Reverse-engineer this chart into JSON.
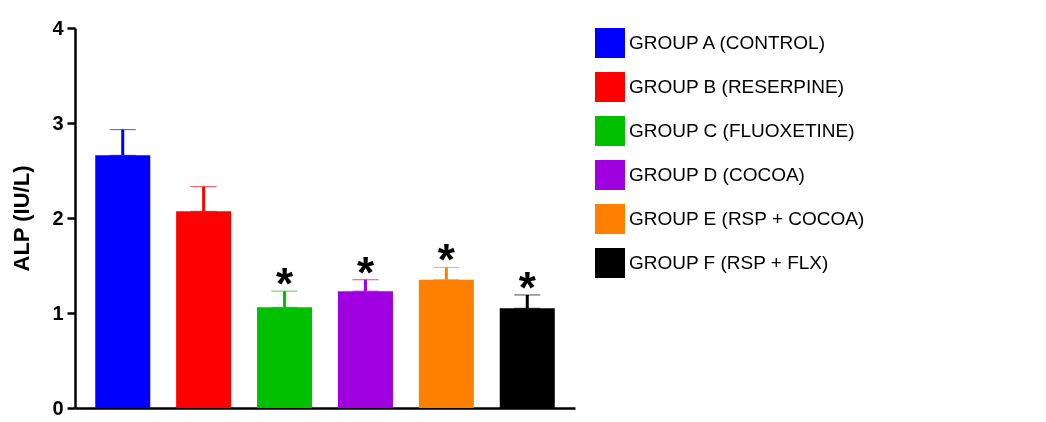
{
  "chart_data": {
    "type": "bar",
    "ylabel": "ALP (IU/L)",
    "categories": [
      null,
      null,
      null,
      null,
      null,
      null
    ],
    "series": [
      {
        "name": "GROUP A (CONTROL)",
        "color": "#0000ff",
        "values": [
          2.66,
          null,
          null,
          null,
          null,
          null
        ],
        "errors": [
          0.27,
          null,
          null,
          null,
          null,
          null
        ]
      },
      {
        "name": "GROUP B (RESERPINE)",
        "color": "#ff0000",
        "values": [
          null,
          2.07,
          null,
          null,
          null,
          null
        ],
        "errors": [
          null,
          0.26,
          null,
          null,
          null,
          null
        ]
      },
      {
        "name": "GROUP C (FLUOXETINE)",
        "color": "#00c000",
        "values": [
          null,
          null,
          1.06,
          null,
          null,
          null
        ],
        "errors": [
          null,
          null,
          0.17,
          null,
          null,
          null
        ]
      },
      {
        "name": "GROUP D (COCOA)",
        "color": "#a000e0",
        "values": [
          null,
          null,
          null,
          1.23,
          null,
          null
        ],
        "errors": [
          null,
          null,
          null,
          0.12,
          null,
          null
        ]
      },
      {
        "name": "GROUP E (RSP + COCOA)",
        "color": "#ff8000",
        "values": [
          null,
          null,
          null,
          null,
          1.35,
          null
        ],
        "errors": [
          null,
          null,
          null,
          null,
          0.13,
          null
        ]
      },
      {
        "name": "GROUP F (RSP + FLX)",
        "color": "#000000",
        "values": [
          null,
          null,
          null,
          null,
          null,
          1.05
        ],
        "errors": [
          null,
          null,
          null,
          null,
          null,
          0.14
        ]
      }
    ],
    "annotations": [
      {
        "text": "*",
        "y": 1.23
      },
      {
        "text": "*",
        "y": 1.35
      },
      {
        "text": "*",
        "y": 1.48
      },
      {
        "text": "*",
        "y": 1.19
      }
    ],
    "ylim": [
      0,
      4
    ],
    "yticks": [
      0,
      1,
      2,
      3,
      4
    ],
    "grid": false,
    "legend": "right",
    "tick_labels": "y"
  }
}
